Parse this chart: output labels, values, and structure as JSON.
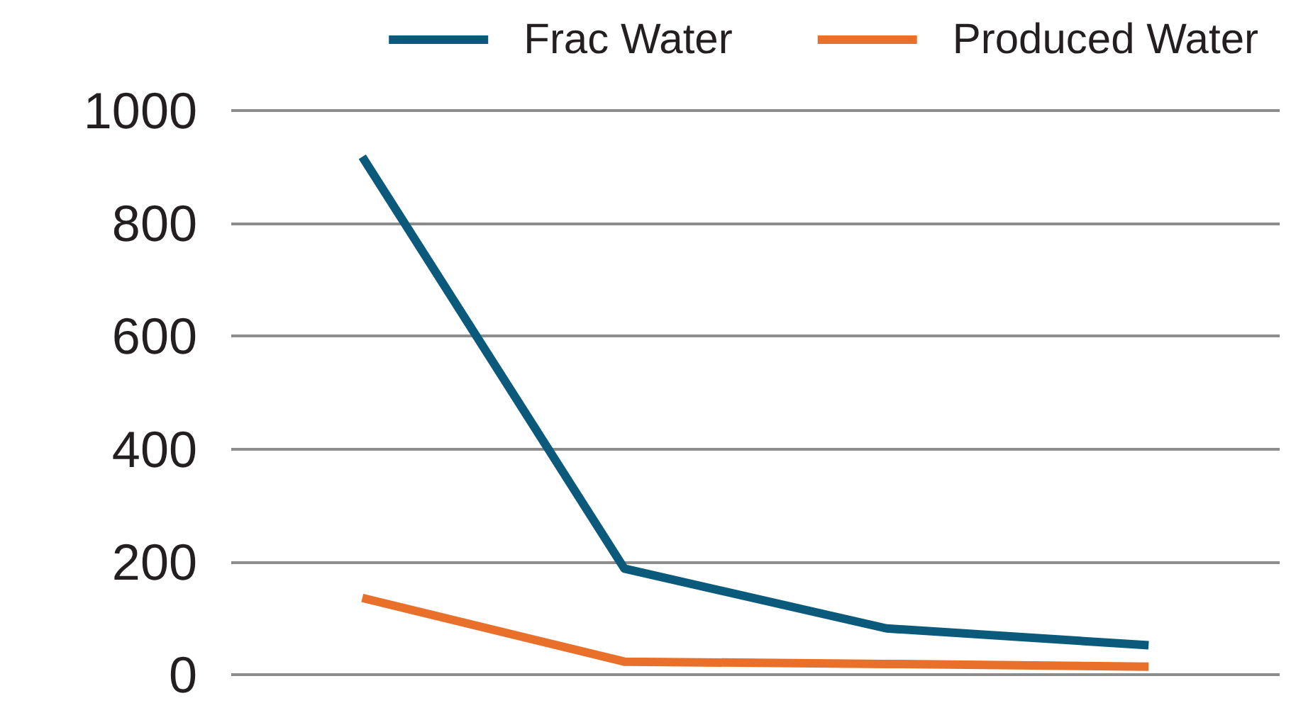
{
  "chart_data": {
    "type": "line",
    "categories": [
      null,
      null,
      null,
      null
    ],
    "series": [
      {
        "name": "Frac Water",
        "color": "#0b5a7c",
        "values": [
          918,
          188,
          82,
          52
        ]
      },
      {
        "name": "Produced Water",
        "color": "#e8702a",
        "values": [
          136,
          23,
          19,
          14
        ]
      }
    ],
    "ylim": [
      0,
      1000
    ],
    "yticks": [
      0,
      200,
      400,
      600,
      800,
      1000
    ],
    "grid": "y",
    "legend": "top right",
    "marker": "none",
    "line_style": "solid",
    "tick_labels": "y"
  }
}
